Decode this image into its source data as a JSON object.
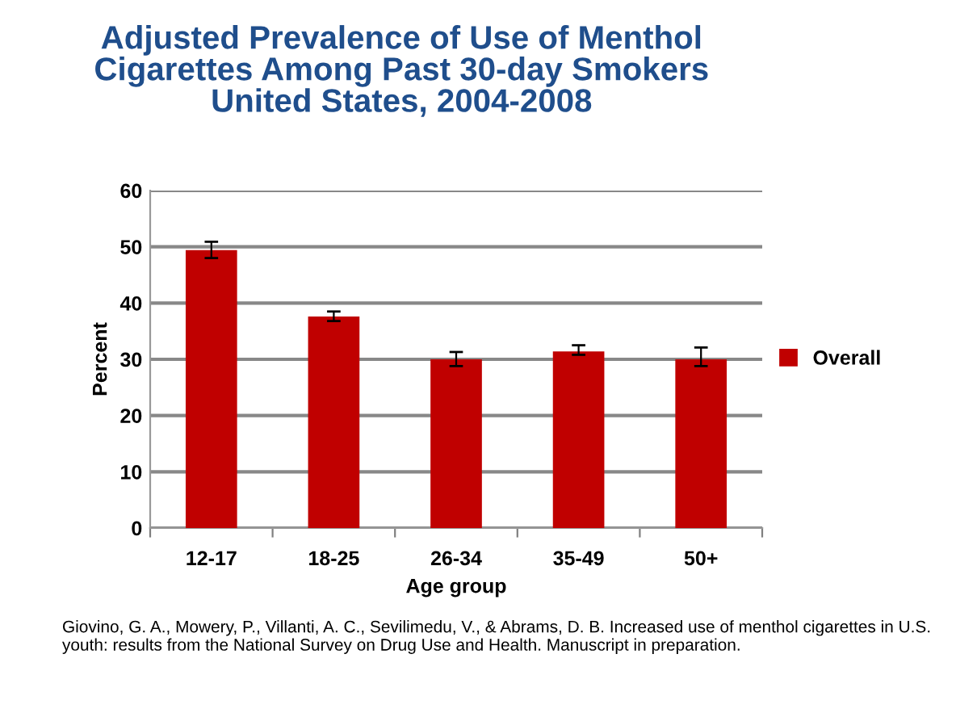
{
  "chart_data": {
    "type": "bar",
    "title": "Adjusted Prevalence of Use of Menthol\nCigarettes Among Past 30-day Smokers\nUnited States, 2004-2008",
    "xlabel": "Age group",
    "ylabel": "Percent",
    "categories": [
      "12-17",
      "18-25",
      "26-34",
      "35-49",
      "50+"
    ],
    "series": [
      {
        "name": "Overall",
        "color": "#c00000",
        "values": [
          49.4,
          37.6,
          30.0,
          31.4,
          30.0
        ],
        "errors": [
          [
            48.0,
            50.9
          ],
          [
            36.8,
            38.5
          ],
          [
            28.8,
            31.3
          ],
          [
            30.8,
            32.5
          ],
          [
            28.8,
            32.1
          ]
        ]
      }
    ],
    "ylim": [
      0,
      60
    ],
    "yticks": [
      0,
      10,
      20,
      30,
      40,
      50,
      60
    ],
    "grid": "y",
    "legend": "right",
    "annotations": [
      "Giovino, G. A., Mowery, P., Villanti, A. C., Sevilimedu, V., & Abrams, D. B. Increased use of menthol cigarettes in U.S. youth: results from the National Survey on Drug Use and Health. Manuscript in preparation."
    ]
  }
}
